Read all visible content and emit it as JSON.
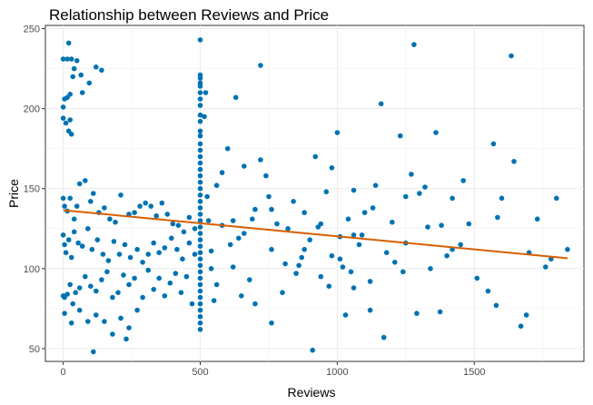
{
  "chart_data": {
    "type": "scatter",
    "title": "Relationship between Reviews and Price",
    "xlabel": "Reviews",
    "ylabel": "Price",
    "xlim": [
      -65,
      1900
    ],
    "ylim": [
      42,
      252
    ],
    "x_ticks": [
      0,
      500,
      1000,
      1500
    ],
    "y_ticks": [
      50,
      100,
      150,
      200,
      250
    ],
    "grid": true,
    "point_color": "#0072B2",
    "trend_color": "#D55E00",
    "trend_line": {
      "x": [
        0,
        1840
      ],
      "y": [
        136.5,
        106.5
      ]
    },
    "points": [
      [
        0,
        231
      ],
      [
        15,
        231
      ],
      [
        30,
        231
      ],
      [
        50,
        230
      ],
      [
        40,
        225
      ],
      [
        65,
        221
      ],
      [
        95,
        216
      ],
      [
        120,
        226
      ],
      [
        140,
        224
      ],
      [
        20,
        241
      ],
      [
        0,
        201
      ],
      [
        5,
        206
      ],
      [
        15,
        207
      ],
      [
        25,
        209
      ],
      [
        35,
        220
      ],
      [
        70,
        210
      ],
      [
        0,
        194
      ],
      [
        10,
        191
      ],
      [
        20,
        186
      ],
      [
        25,
        193
      ],
      [
        30,
        184
      ],
      [
        0,
        144
      ],
      [
        5,
        139
      ],
      [
        15,
        136
      ],
      [
        25,
        144
      ],
      [
        40,
        131
      ],
      [
        50,
        139
      ],
      [
        60,
        153
      ],
      [
        80,
        155
      ],
      [
        100,
        142
      ],
      [
        110,
        147
      ],
      [
        130,
        135
      ],
      [
        150,
        138
      ],
      [
        170,
        131
      ],
      [
        190,
        129
      ],
      [
        210,
        146
      ],
      [
        240,
        134
      ],
      [
        260,
        135
      ],
      [
        280,
        139
      ],
      [
        300,
        141
      ],
      [
        320,
        139
      ],
      [
        340,
        133
      ],
      [
        360,
        141
      ],
      [
        380,
        134
      ],
      [
        400,
        128
      ],
      [
        420,
        127
      ],
      [
        440,
        123
      ],
      [
        460,
        132
      ],
      [
        480,
        125
      ],
      [
        0,
        121
      ],
      [
        5,
        115
      ],
      [
        10,
        110
      ],
      [
        20,
        118
      ],
      [
        30,
        107
      ],
      [
        40,
        123
      ],
      [
        55,
        116
      ],
      [
        70,
        114
      ],
      [
        90,
        125
      ],
      [
        105,
        112
      ],
      [
        125,
        118
      ],
      [
        145,
        109
      ],
      [
        165,
        105
      ],
      [
        185,
        117
      ],
      [
        205,
        109
      ],
      [
        225,
        115
      ],
      [
        245,
        107
      ],
      [
        270,
        112
      ],
      [
        290,
        104
      ],
      [
        310,
        109
      ],
      [
        330,
        116
      ],
      [
        350,
        110
      ],
      [
        370,
        113
      ],
      [
        395,
        119
      ],
      [
        415,
        112
      ],
      [
        435,
        106
      ],
      [
        460,
        116
      ],
      [
        480,
        109
      ],
      [
        0,
        83
      ],
      [
        5,
        82
      ],
      [
        15,
        84
      ],
      [
        25,
        90
      ],
      [
        35,
        78
      ],
      [
        45,
        85
      ],
      [
        60,
        88
      ],
      [
        80,
        95
      ],
      [
        100,
        89
      ],
      [
        120,
        86
      ],
      [
        140,
        93
      ],
      [
        160,
        98
      ],
      [
        180,
        82
      ],
      [
        200,
        85
      ],
      [
        220,
        96
      ],
      [
        240,
        90
      ],
      [
        260,
        94
      ],
      [
        290,
        82
      ],
      [
        310,
        99
      ],
      [
        330,
        87
      ],
      [
        350,
        94
      ],
      [
        370,
        83
      ],
      [
        390,
        91
      ],
      [
        410,
        97
      ],
      [
        430,
        85
      ],
      [
        450,
        95
      ],
      [
        470,
        78
      ],
      [
        5,
        72
      ],
      [
        30,
        66
      ],
      [
        60,
        74
      ],
      [
        90,
        67
      ],
      [
        120,
        71
      ],
      [
        150,
        67
      ],
      [
        180,
        59
      ],
      [
        210,
        69
      ],
      [
        240,
        63
      ],
      [
        270,
        74
      ],
      [
        110,
        48
      ],
      [
        230,
        56
      ],
      [
        500,
        243
      ],
      [
        500,
        221
      ],
      [
        500,
        219
      ],
      [
        500,
        216
      ],
      [
        500,
        214
      ],
      [
        500,
        210
      ],
      [
        500,
        206
      ],
      [
        500,
        202
      ],
      [
        500,
        196
      ],
      [
        500,
        192
      ],
      [
        500,
        186
      ],
      [
        500,
        183
      ],
      [
        500,
        178
      ],
      [
        500,
        174
      ],
      [
        500,
        170
      ],
      [
        500,
        166
      ],
      [
        500,
        162
      ],
      [
        500,
        158
      ],
      [
        500,
        154
      ],
      [
        500,
        150
      ],
      [
        500,
        146
      ],
      [
        500,
        142
      ],
      [
        500,
        138
      ],
      [
        500,
        134
      ],
      [
        500,
        130
      ],
      [
        500,
        126
      ],
      [
        500,
        122
      ],
      [
        500,
        118
      ],
      [
        500,
        114
      ],
      [
        500,
        110
      ],
      [
        500,
        106
      ],
      [
        500,
        102
      ],
      [
        500,
        98
      ],
      [
        500,
        94
      ],
      [
        500,
        90
      ],
      [
        500,
        86
      ],
      [
        500,
        82
      ],
      [
        500,
        78
      ],
      [
        500,
        74
      ],
      [
        500,
        70
      ],
      [
        500,
        66
      ],
      [
        500,
        62
      ],
      [
        515,
        195
      ],
      [
        520,
        210
      ],
      [
        525,
        145
      ],
      [
        530,
        130
      ],
      [
        540,
        100
      ],
      [
        550,
        80
      ],
      [
        560,
        152
      ],
      [
        580,
        160
      ],
      [
        600,
        175
      ],
      [
        620,
        130
      ],
      [
        630,
        207
      ],
      [
        640,
        119
      ],
      [
        660,
        164
      ],
      [
        680,
        93
      ],
      [
        700,
        137
      ],
      [
        720,
        227
      ],
      [
        740,
        158
      ],
      [
        760,
        112
      ],
      [
        780,
        128
      ],
      [
        800,
        85
      ],
      [
        820,
        125
      ],
      [
        840,
        142
      ],
      [
        860,
        102
      ],
      [
        880,
        135
      ],
      [
        900,
        118
      ],
      [
        920,
        170
      ],
      [
        940,
        95
      ],
      [
        960,
        148
      ],
      [
        980,
        108
      ],
      [
        1000,
        185
      ],
      [
        1010,
        120
      ],
      [
        1020,
        101
      ],
      [
        1040,
        131
      ],
      [
        1060,
        88
      ],
      [
        1080,
        115
      ],
      [
        1100,
        135
      ],
      [
        1120,
        92
      ],
      [
        1140,
        152
      ],
      [
        1160,
        203
      ],
      [
        1180,
        110
      ],
      [
        1200,
        129
      ],
      [
        1230,
        183
      ],
      [
        1250,
        116
      ],
      [
        1270,
        159
      ],
      [
        1280,
        240
      ],
      [
        1300,
        147
      ],
      [
        1320,
        151
      ],
      [
        1340,
        100
      ],
      [
        1360,
        185
      ],
      [
        1380,
        127
      ],
      [
        1400,
        108
      ],
      [
        1420,
        144
      ],
      [
        1450,
        115
      ],
      [
        1480,
        128
      ],
      [
        1510,
        94
      ],
      [
        1550,
        86
      ],
      [
        1570,
        178
      ],
      [
        1585,
        132
      ],
      [
        1600,
        144
      ],
      [
        1635,
        233
      ],
      [
        1645,
        167
      ],
      [
        1670,
        64
      ],
      [
        1690,
        71
      ],
      [
        1730,
        131
      ],
      [
        1760,
        101
      ],
      [
        1800,
        144
      ],
      [
        1840,
        112
      ],
      [
        1580,
        77
      ],
      [
        1460,
        155
      ],
      [
        1290,
        72
      ],
      [
        1375,
        73
      ],
      [
        1120,
        74
      ],
      [
        1030,
        71
      ],
      [
        910,
        49
      ],
      [
        760,
        66
      ],
      [
        700,
        78
      ],
      [
        650,
        83
      ],
      [
        1170,
        57
      ],
      [
        870,
        107
      ],
      [
        1060,
        121
      ],
      [
        1250,
        145
      ],
      [
        540,
        111
      ],
      [
        580,
        127
      ],
      [
        610,
        115
      ],
      [
        660,
        122
      ],
      [
        690,
        131
      ],
      [
        750,
        145
      ],
      [
        810,
        103
      ],
      [
        850,
        97
      ],
      [
        880,
        112
      ],
      [
        930,
        126
      ],
      [
        970,
        89
      ],
      [
        1010,
        106
      ],
      [
        1050,
        98
      ],
      [
        1090,
        121
      ],
      [
        1130,
        138
      ],
      [
        1210,
        104
      ],
      [
        1240,
        98
      ],
      [
        1330,
        126
      ],
      [
        1700,
        110
      ],
      [
        1780,
        106
      ],
      [
        1420,
        112
      ],
      [
        1060,
        149
      ],
      [
        980,
        163
      ],
      [
        720,
        168
      ],
      [
        620,
        101
      ],
      [
        560,
        90
      ],
      [
        760,
        137
      ],
      [
        940,
        128
      ]
    ]
  }
}
